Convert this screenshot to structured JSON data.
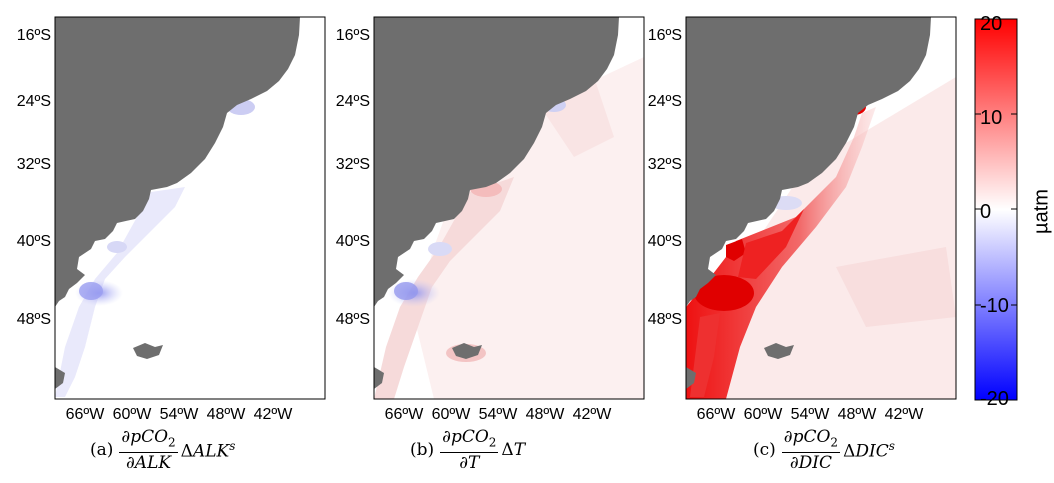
{
  "panels": [
    {
      "id": "a",
      "caption_tag": "(a)",
      "frac_num": "∂pCO",
      "frac_num_sub": "2",
      "frac_den": "∂ALK",
      "term_delta": "Δ",
      "term_var": "ALK",
      "term_sup": "s"
    },
    {
      "id": "b",
      "caption_tag": "(b)",
      "frac_num": "∂pCO",
      "frac_num_sub": "2",
      "frac_den": "∂T",
      "term_delta": "Δ",
      "term_var": "T",
      "term_sup": ""
    },
    {
      "id": "c",
      "caption_tag": "(c)",
      "frac_num": "∂pCO",
      "frac_num_sub": "2",
      "frac_den": "∂DIC",
      "term_delta": "Δ",
      "term_var": "DIC",
      "term_sup": "s"
    }
  ],
  "lat_labels": [
    "16ºS",
    "24ºS",
    "32ºS",
    "40ºS",
    "48ºS"
  ],
  "lon_labels": [
    "66ºW",
    "60ºW",
    "54ºW",
    "48ºW",
    "42ºW"
  ],
  "colorbar": {
    "ticks": [
      "20",
      "10",
      "0",
      "-10",
      "-20"
    ],
    "units": "µatm",
    "color_max": "#ff0000",
    "color_mid": "#ffffff",
    "color_min": "#0000ff"
  },
  "colors": {
    "land": "#6e6e6e",
    "ocean": "#ffffff"
  }
}
